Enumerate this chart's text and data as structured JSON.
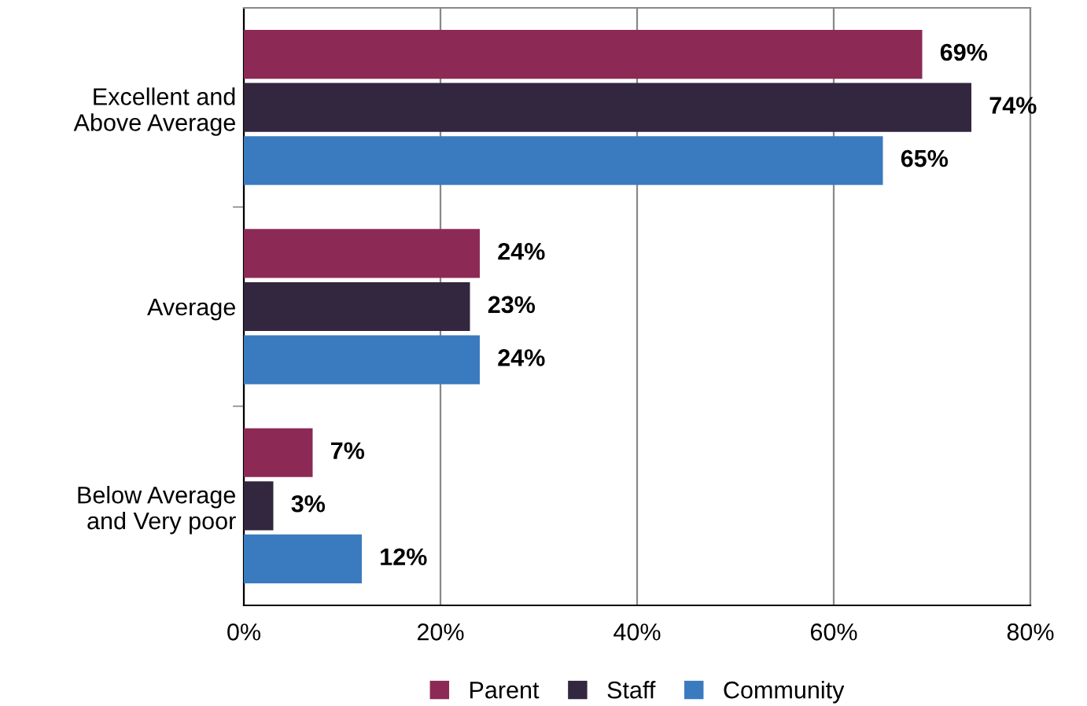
{
  "chart_data": {
    "type": "bar",
    "orientation": "horizontal",
    "categories": [
      "Excellent and\nAbove Average",
      "Average",
      "Below Average\nand Very poor"
    ],
    "series": [
      {
        "name": "Parent",
        "color": "#8c2a55",
        "values": [
          69,
          24,
          7
        ],
        "value_labels": [
          "69%",
          "24%",
          "7%"
        ]
      },
      {
        "name": "Staff",
        "color": "#33263f",
        "values": [
          74,
          23,
          3
        ],
        "value_labels": [
          "74%",
          "23%",
          "3%"
        ]
      },
      {
        "name": "Community",
        "color": "#3a7bc0",
        "values": [
          65,
          24,
          12
        ],
        "value_labels": [
          "65%",
          "24%",
          "12%"
        ]
      }
    ],
    "xlim": [
      0,
      80
    ],
    "xticks": [
      {
        "value": 0,
        "label": "0%"
      },
      {
        "value": 20,
        "label": "20%"
      },
      {
        "value": 40,
        "label": "40%"
      },
      {
        "value": 60,
        "label": "60%"
      },
      {
        "value": 80,
        "label": "80%"
      }
    ],
    "grid": "x",
    "legend": "bottom"
  }
}
